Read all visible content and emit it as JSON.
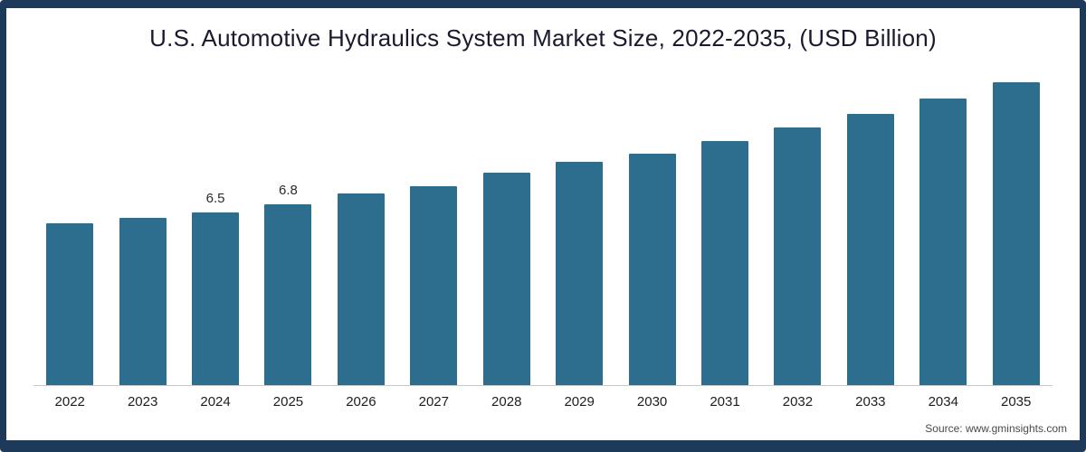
{
  "header": {
    "title": "U.S. Automotive Hydraulics System Market Size, 2022-2035, (USD Billion)"
  },
  "footer": {
    "source": "Source: www.gminsights.com"
  },
  "chart": {
    "bar_color": "#2d6e8e",
    "frame_color": "#1e3a5a",
    "axis_line_color": "#c9c9c9"
  },
  "chart_data": {
    "type": "bar",
    "title": "U.S. Automotive Hydraulics System Market Size, 2022-2035, (USD Billion)",
    "categories": [
      "2022",
      "2023",
      "2024",
      "2025",
      "2026",
      "2027",
      "2028",
      "2029",
      "2030",
      "2031",
      "2032",
      "2033",
      "2034",
      "2035"
    ],
    "values": [
      6.1,
      6.3,
      6.5,
      6.8,
      7.2,
      7.5,
      8.0,
      8.4,
      8.7,
      9.2,
      9.7,
      10.2,
      10.8,
      11.4
    ],
    "data_labels": [
      "",
      "",
      "6.5",
      "6.8",
      "",
      "",
      "",
      "",
      "",
      "",
      "",
      "",
      "",
      ""
    ],
    "xlabel": "",
    "ylabel": "",
    "ylim": [
      0,
      11.8
    ],
    "grid": false,
    "legend": "none"
  }
}
